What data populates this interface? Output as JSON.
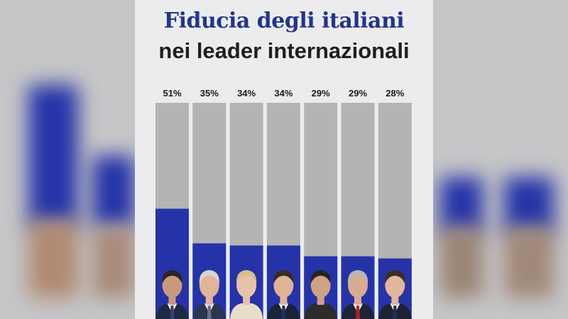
{
  "header": {
    "title": "Fiducia degli italiani",
    "subtitle": "nei leader internazionali"
  },
  "colors": {
    "bar_fill": "#2633a8",
    "bar_track": "#b4b4b6",
    "title": "#243489",
    "card_background": "#ececee"
  },
  "chart_data": {
    "type": "bar",
    "title": "Fiducia degli italiani nei leader internazionali",
    "xlabel": "",
    "ylabel": "",
    "ylim": [
      0,
      100
    ],
    "grid": false,
    "legend": "none",
    "categories": [
      "",
      "",
      "",
      "",
      "",
      "",
      ""
    ],
    "value_labels": [
      "51%",
      "35%",
      "34%",
      "34%",
      "29%",
      "29%",
      "28%"
    ],
    "values": [
      51,
      35,
      34,
      34,
      29,
      29,
      28
    ]
  },
  "avatars": [
    {
      "icon": "leader-portrait-1-icon",
      "skin": "#c99a7a",
      "hair": "#2b2521",
      "suit": "#1e2a44",
      "shirt": "#ffffff",
      "tie": "#3a3f6a"
    },
    {
      "icon": "leader-portrait-2-icon",
      "skin": "#e2b49a",
      "hair": "#d8d6d2",
      "suit": "#2a3550",
      "shirt": "#f3f3f3",
      "tie": "#6b6f86"
    },
    {
      "icon": "leader-portrait-3-icon",
      "skin": "#e8c2a8",
      "hair": "#d9c08a",
      "suit": "#e8dccb",
      "shirt": "#e8dccb",
      "tie": "#e8dccb"
    },
    {
      "icon": "leader-portrait-4-icon",
      "skin": "#e0b397",
      "hair": "#3a2b22",
      "suit": "#1a2238",
      "shirt": "#ffffff",
      "tie": "#1f2f5a"
    },
    {
      "icon": "leader-portrait-5-icon",
      "skin": "#cfa284",
      "hair": "#2a2420",
      "suit": "#2c2c2a",
      "shirt": "#2c2c2a",
      "tie": "#2c2c2a"
    },
    {
      "icon": "leader-portrait-6-icon",
      "skin": "#d8ac90",
      "hair": "#b9b6b2",
      "suit": "#1e2436",
      "shirt": "#ffffff",
      "tie": "#b2222a"
    },
    {
      "icon": "leader-portrait-7-icon",
      "skin": "#e0b69c",
      "hair": "#3b2c23",
      "suit": "#1b2234",
      "shirt": "#ffffff",
      "tie": "#24304f"
    }
  ]
}
